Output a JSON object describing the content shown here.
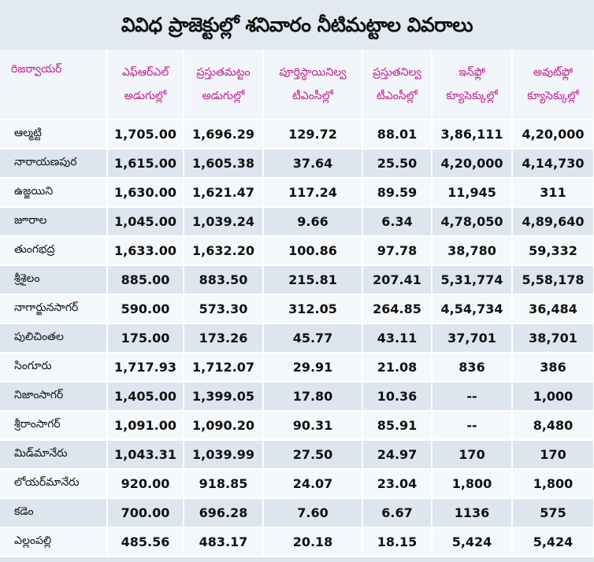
{
  "title": "వివిధ ప్రాజెక్టుల్లో శనివారం నీటిమట్టాల వివరాలు",
  "headers": [
    {
      "line1": "రిజర్వాయర్",
      "line2": ""
    },
    {
      "line1": "ఎఫ్ఆర్ఎల్",
      "line2": "అడుగుల్లో"
    },
    {
      "line1": "ప్రస్తుతమట్టం",
      "line2": "అడుగుల్లో"
    },
    {
      "line1": "పూర్తిస్థాయినిల్వ",
      "line2": "టీఎంసీల్లో"
    },
    {
      "line1": "ప్రస్తుతనిల్వ",
      "line2": "టీఎంసీల్లో"
    },
    {
      "line1": "ఇన్‌ఫ్లో",
      "line2": "క్యూసెక్కుల్లో"
    },
    {
      "line1": "అవుట్‌ఫ్లో",
      "line2": "క్యూసెక్కుల్లో"
    }
  ],
  "rows": [
    [
      "ఆల్మట్టి",
      "1,705.00",
      "1,696.29",
      "129.72",
      "88.01",
      "3,86,111",
      "4,20,000"
    ],
    [
      "నారాయణపుర",
      "1,615.00",
      "1,605.38",
      "37.64",
      "25.50",
      "4,20,000",
      "4,14,730"
    ],
    [
      "ఉజ్జయిని",
      "1,630.00",
      "1,621.47",
      "117.24",
      "89.59",
      "11,945",
      "311"
    ],
    [
      "జూరాల",
      "1,045.00",
      "1,039.24",
      "9.66",
      "6.34",
      "4,78,050",
      "4,89,640"
    ],
    [
      "తుంగభద్ర",
      "1,633.00",
      "1,632.20",
      "100.86",
      "97.78",
      "38,780",
      "59,332"
    ],
    [
      "శ్రీశైలం",
      "885.00",
      "883.50",
      "215.81",
      "207.41",
      "5,31,774",
      "5,58,178"
    ],
    [
      "నాగార్జునసాగర్",
      "590.00",
      "573.30",
      "312.05",
      "264.85",
      "4,54,734",
      "36,484"
    ],
    [
      "పులిచింతల",
      "175.00",
      "173.26",
      "45.77",
      "43.11",
      "37,701",
      "38,701"
    ],
    [
      "సింగూరు",
      "1,717.93",
      "1,712.07",
      "29.91",
      "21.08",
      "836",
      "386"
    ],
    [
      "నిజాంసాగర్",
      "1,405.00",
      "1,399.05",
      "17.80",
      "10.36",
      "--",
      "1,000"
    ],
    [
      "శ్రీరాంసాగర్",
      "1,091.00",
      "1,090.20",
      "90.31",
      "85.91",
      "--",
      "8,480"
    ],
    [
      "మిడ్‌మానేరు",
      "1,043.31",
      "1,039.99",
      "27.50",
      "24.97",
      "170",
      "170"
    ],
    [
      "లోయర్‌మానేరు",
      "920.00",
      "918.85",
      "24.07",
      "23.04",
      "1,800",
      "1,800"
    ],
    [
      "కడెం",
      "700.00",
      "696.28",
      "7.60",
      "6.67",
      "1136",
      "575"
    ],
    [
      "ఎల్లంపల్లి",
      "485.56",
      "483.17",
      "20.18",
      "18.15",
      "5,424",
      "5,424"
    ]
  ]
}
